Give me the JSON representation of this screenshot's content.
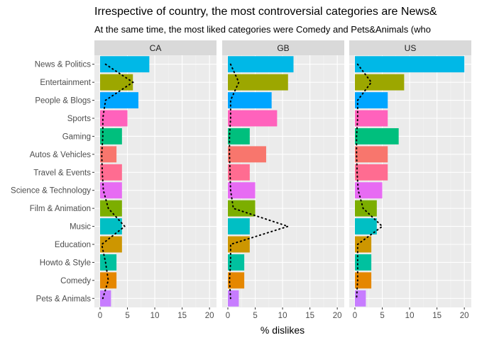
{
  "chart_data": {
    "type": "bar",
    "title": "Irrespective of country, the most controversial categories are News&",
    "subtitle": "At the same time, the most liked categories were Comedy and Pets&Animals (who",
    "xlabel": "% dislikes",
    "ylabel": "",
    "xlim": [
      0,
      20.5
    ],
    "xticks": [
      0,
      5,
      10,
      15,
      20
    ],
    "categories": [
      "News & Politics",
      "Entertainment",
      "People & Blogs",
      "Sports",
      "Gaming",
      "Autos & Vehicles",
      "Travel & Events",
      "Science & Technology",
      "Film & Animation",
      "Music",
      "Education",
      "Howto & Style",
      "Comedy",
      "Pets & Animals"
    ],
    "colors": [
      "#00B8E7",
      "#9CA700",
      "#00A5FF",
      "#FF62BC",
      "#00BF7D",
      "#F8766D",
      "#FF6C91",
      "#E76BF3",
      "#7CAE00",
      "#00BFC4",
      "#CD9600",
      "#00C19F",
      "#E58700",
      "#C77CFF"
    ],
    "grid": true,
    "legend": "none",
    "panels": [
      {
        "label": "CA",
        "values": [
          9,
          6,
          7,
          5,
          4,
          3,
          4,
          4,
          4,
          4,
          4,
          3,
          3,
          2
        ],
        "dotted_line": [
          1,
          6,
          1,
          0.5,
          0.5,
          0.3,
          0.4,
          0.6,
          1.5,
          4.5,
          0.3,
          1,
          1.5,
          0.5
        ]
      },
      {
        "label": "GB",
        "values": [
          12,
          11,
          8,
          9,
          4,
          7,
          4,
          5,
          5,
          4,
          4,
          3,
          3,
          2
        ],
        "dotted_line": [
          0.5,
          2,
          0.5,
          0.5,
          0.3,
          0.3,
          0.4,
          0.5,
          1,
          11,
          0.5,
          0.5,
          0.3,
          0.5
        ]
      },
      {
        "label": "US",
        "values": [
          20,
          9,
          6,
          6,
          8,
          6,
          6,
          5,
          4,
          4,
          3,
          3,
          3,
          2
        ],
        "dotted_line": [
          0.5,
          3,
          0.5,
          0.5,
          0.3,
          0.3,
          0.4,
          0.6,
          1.5,
          5,
          0.5,
          0.5,
          0.5,
          0.3
        ]
      }
    ]
  }
}
